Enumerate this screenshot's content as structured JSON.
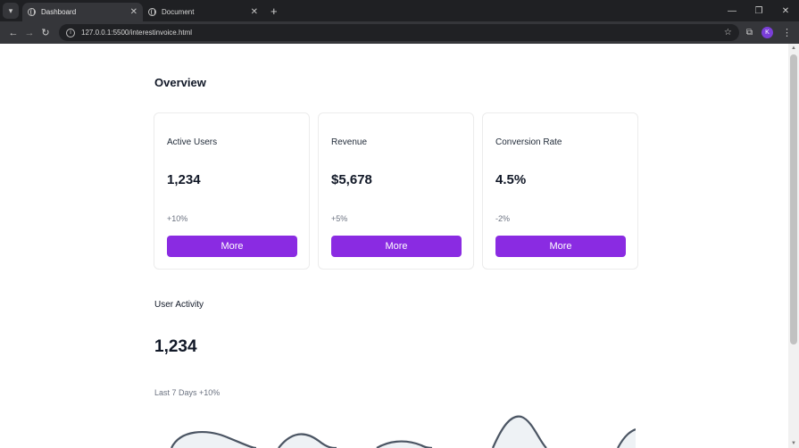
{
  "browser": {
    "tabs": [
      {
        "title": "Dashboard",
        "active": true
      },
      {
        "title": "Document",
        "active": false
      }
    ],
    "url": "127.0.0.1:5500/interestinvoice.html",
    "icons": {
      "back": "arrow-left-icon",
      "forward": "arrow-right-icon",
      "reload": "reload-icon",
      "info": "info-icon",
      "bookmark": "star-icon",
      "extensions": "puzzle-icon",
      "menu": "kebab-icon"
    },
    "profile_initial": "K"
  },
  "page": {
    "heading": "Overview",
    "cards": [
      {
        "label": "Active Users",
        "value": "1,234",
        "change": "+10%",
        "button": "More"
      },
      {
        "label": "Revenue",
        "value": "$5,678",
        "change": "+5%",
        "button": "More"
      },
      {
        "label": "Conversion Rate",
        "value": "4.5%",
        "change": "-2%",
        "button": "More"
      }
    ],
    "activity": {
      "label": "User Activity",
      "value": "1,234",
      "subtitle": "Last 7 Days +10%"
    }
  },
  "colors": {
    "accent": "#8a2be2",
    "chart_stroke": "#4b5563",
    "chart_fill": "#eef2f5"
  }
}
